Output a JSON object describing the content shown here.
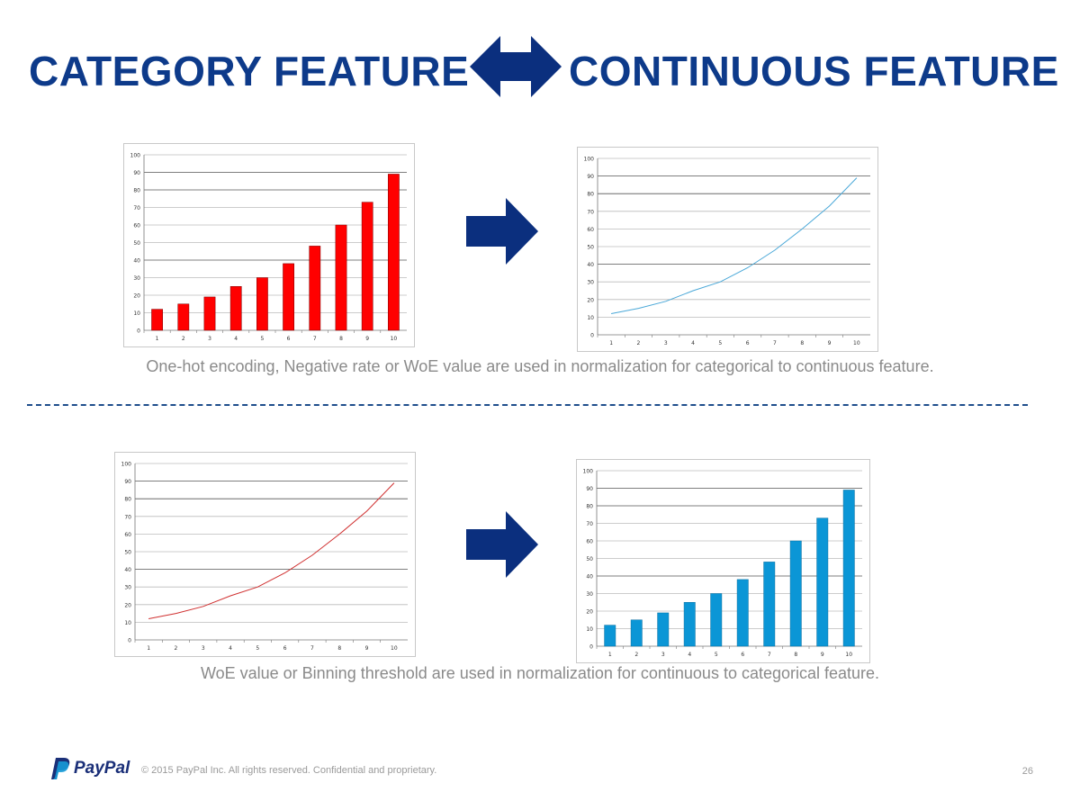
{
  "header": {
    "left_title": "CATEGORY FEATURE",
    "right_title": "CONTINUOUS FEATURE"
  },
  "captions": {
    "top": "One-hot encoding, Negative rate or WoE value are used in normalization for categorical to continuous feature.",
    "bottom": "WoE value or Binning threshold are used in normalization for continuous to categorical feature."
  },
  "footer": {
    "brand": "PayPal",
    "copyright": "© 2015 PayPal Inc. All rights reserved. Confidential and proprietary.",
    "page_number": "26"
  },
  "colors": {
    "title": "#0d3a8a",
    "arrow": "#0b2f7e",
    "red_bar": "#ff0000",
    "blue_line": "#4aa8d8",
    "red_line": "#d03030",
    "blue_bar": "#0b96d6",
    "divider": "#1f4e8c"
  },
  "icons": {
    "double_arrow": "left-right-arrow-icon",
    "right_arrow": "right-arrow-icon",
    "logo": "paypal-logo-icon"
  },
  "chart_data": [
    {
      "type": "bar",
      "categories": [
        "1",
        "2",
        "3",
        "4",
        "5",
        "6",
        "7",
        "8",
        "9",
        "10"
      ],
      "values": [
        12,
        15,
        19,
        25,
        30,
        38,
        48,
        60,
        73,
        89
      ],
      "ylim": [
        0,
        100
      ],
      "yticks": [
        0,
        10,
        20,
        30,
        40,
        50,
        60,
        70,
        80,
        90,
        100
      ],
      "color": "#ff0000",
      "grid": true,
      "title": "",
      "xlabel": "",
      "ylabel": ""
    },
    {
      "type": "line",
      "categories": [
        "1",
        "2",
        "3",
        "4",
        "5",
        "6",
        "7",
        "8",
        "9",
        "10"
      ],
      "values": [
        12,
        15,
        19,
        25,
        30,
        38,
        48,
        60,
        73,
        89
      ],
      "ylim": [
        0,
        100
      ],
      "yticks": [
        0,
        10,
        20,
        30,
        40,
        50,
        60,
        70,
        80,
        90,
        100
      ],
      "color": "#4aa8d8",
      "grid": true,
      "title": "",
      "xlabel": "",
      "ylabel": ""
    },
    {
      "type": "line",
      "categories": [
        "1",
        "2",
        "3",
        "4",
        "5",
        "6",
        "7",
        "8",
        "9",
        "10"
      ],
      "values": [
        12,
        15,
        19,
        25,
        30,
        38,
        48,
        60,
        73,
        89
      ],
      "ylim": [
        0,
        100
      ],
      "yticks": [
        0,
        10,
        20,
        30,
        40,
        50,
        60,
        70,
        80,
        90,
        100
      ],
      "color": "#d03030",
      "grid": true,
      "title": "",
      "xlabel": "",
      "ylabel": ""
    },
    {
      "type": "bar",
      "categories": [
        "1",
        "2",
        "3",
        "4",
        "5",
        "6",
        "7",
        "8",
        "9",
        "10"
      ],
      "values": [
        12,
        15,
        19,
        25,
        30,
        38,
        48,
        60,
        73,
        89
      ],
      "ylim": [
        0,
        100
      ],
      "yticks": [
        0,
        10,
        20,
        30,
        40,
        50,
        60,
        70,
        80,
        90,
        100
      ],
      "color": "#0b96d6",
      "grid": true,
      "title": "",
      "xlabel": "",
      "ylabel": ""
    }
  ]
}
